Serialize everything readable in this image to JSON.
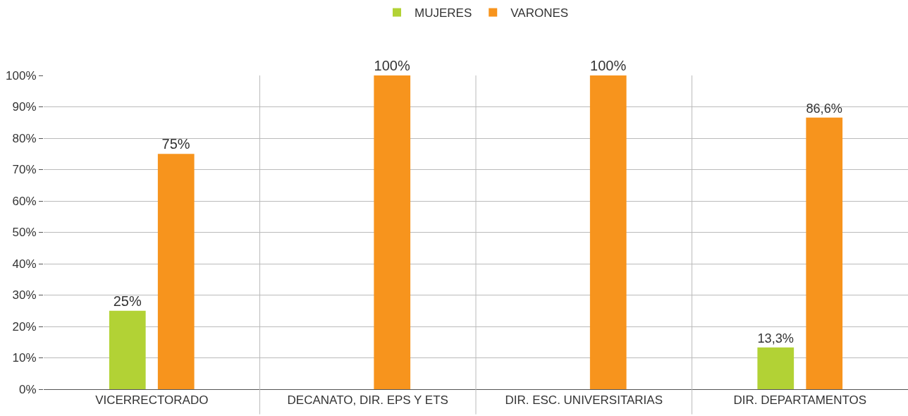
{
  "chart_data": {
    "type": "bar",
    "categories": [
      "VICERRECTORADO",
      "DECANATO, DIR. EPS Y ETS",
      "DIR. ESC. UNIVERSITARIAS",
      "DIR. DEPARTAMENTOS"
    ],
    "series": [
      {
        "name": "MUJERES",
        "color": "#b2d235",
        "values": [
          25,
          null,
          null,
          13.3
        ],
        "value_labels": [
          "25%",
          null,
          null,
          "13,3%"
        ]
      },
      {
        "name": "VARONES",
        "color": "#f7941d",
        "values": [
          75,
          100,
          100,
          86.6
        ],
        "value_labels": [
          "75%",
          "100%",
          "100%",
          "86,6%"
        ]
      }
    ],
    "ylim": [
      0,
      100
    ],
    "yticks": [
      {
        "value": 0,
        "label": "0%"
      },
      {
        "value": 10,
        "label": "10%"
      },
      {
        "value": 20,
        "label": "20%"
      },
      {
        "value": 30,
        "label": "30%"
      },
      {
        "value": 40,
        "label": "40%"
      },
      {
        "value": 50,
        "label": "50%"
      },
      {
        "value": 60,
        "label": "60%"
      },
      {
        "value": 70,
        "label": "70%"
      },
      {
        "value": 80,
        "label": "80%"
      },
      {
        "value": 90,
        "label": "90%"
      },
      {
        "value": 100,
        "label": "100%"
      }
    ],
    "grid": true,
    "legend": "top"
  }
}
